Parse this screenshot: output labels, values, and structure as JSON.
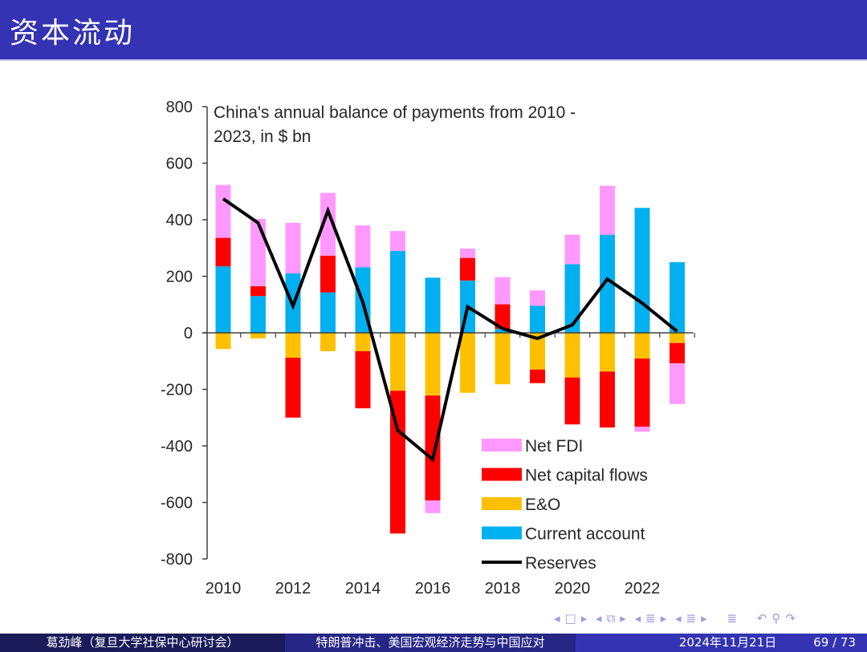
{
  "slide": {
    "title": "资本流动",
    "footer": {
      "author": "葛劲峰（复旦大学社保中心研讨会）",
      "talk_title": "特朗普冲击、美国宏观经济走势与中国应对",
      "date": "2024年11月21日",
      "page": "69 / 73"
    },
    "nav_icons": [
      "nav-left-arrow",
      "frame-icon",
      "nav-right-arrow",
      "nav-left-arrow",
      "subsection-icon",
      "nav-right-arrow",
      "nav-left-arrow",
      "section-icon",
      "nav-right-arrow",
      "nav-left-arrow",
      "list-icon",
      "nav-right-arrow",
      "toc-icon",
      "undo-icon",
      "search-icon",
      "redo-icon"
    ]
  },
  "chart_data": {
    "type": "bar",
    "stacked": true,
    "title": "China's annual balance of payments from 2010 - 2023, in $ bn",
    "title_lines": [
      "China's annual balance of payments from 2010 -",
      "2023, in $ bn"
    ],
    "xlabel": "",
    "ylabel": "",
    "ylim": [
      -800,
      800
    ],
    "yticks": [
      800,
      600,
      400,
      200,
      0,
      -200,
      -400,
      -600,
      -800
    ],
    "categories": [
      "2010",
      "2011",
      "2012",
      "2013",
      "2014",
      "2015",
      "2016",
      "2017",
      "2018",
      "2019",
      "2020",
      "2021",
      "2022",
      "2023"
    ],
    "xtick_labels": [
      "2010",
      "2012",
      "2014",
      "2016",
      "2018",
      "2020",
      "2022"
    ],
    "grid": false,
    "legend_position": "bottom-right",
    "series": [
      {
        "name": "Current account",
        "type": "bar",
        "color": "#00b0f0",
        "values": [
          235,
          130,
          210,
          143,
          232,
          290,
          195,
          185,
          14,
          96,
          243,
          347,
          442,
          250
        ]
      },
      {
        "name": "E&O",
        "type": "bar",
        "color": "#ffc000",
        "values": [
          -57,
          -20,
          -88,
          -65,
          -65,
          -205,
          -222,
          -212,
          -182,
          -130,
          -158,
          -137,
          -91,
          -36
        ]
      },
      {
        "name": "Net capital flows",
        "type": "bar",
        "color": "#ff0000",
        "values": [
          101,
          35,
          -212,
          130,
          -202,
          -505,
          -371,
          80,
          87,
          -48,
          -166,
          -198,
          -241,
          -72
        ]
      },
      {
        "name": "Net FDI",
        "type": "bar",
        "color": "#ff99ff",
        "values": [
          187,
          238,
          179,
          222,
          148,
          70,
          -45,
          33,
          96,
          54,
          104,
          173,
          -18,
          -144
        ]
      },
      {
        "name": "Reserves",
        "type": "line",
        "color": "#000000",
        "values": [
          474,
          389,
          95,
          432,
          108,
          -345,
          -448,
          92,
          15,
          -20,
          28,
          190,
          105,
          5
        ]
      }
    ],
    "legend": [
      "Net FDI",
      "Net capital flows",
      "E&O",
      "Current account",
      "Reserves"
    ]
  }
}
